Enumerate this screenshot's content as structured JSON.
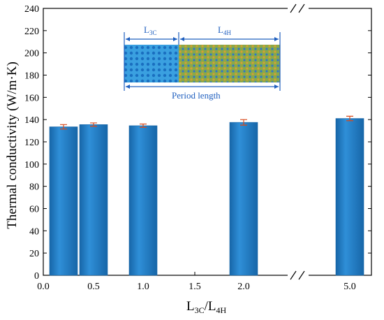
{
  "chart_data": {
    "type": "bar",
    "title": "",
    "xlabel": {
      "main": "L",
      "sub1": "3C",
      "sep": "/L",
      "sub2": "4H"
    },
    "ylabel": "Thermal conductivity (W/m·K)",
    "ylim": [
      0,
      240
    ],
    "yticks": [
      "0",
      "20",
      "40",
      "60",
      "80",
      "100",
      "120",
      "140",
      "160",
      "180",
      "200",
      "220",
      "240"
    ],
    "xticks": [
      "0.0",
      "0.5",
      "1.0",
      "1.5",
      "2.0",
      "5.0"
    ],
    "categories": [
      "0.25",
      "0.5",
      "1.0",
      "2.0",
      "5.0"
    ],
    "values": [
      133.5,
      135.5,
      134.5,
      137.5,
      141
    ],
    "errors": [
      2.0,
      1.5,
      1.5,
      2.5,
      2.0
    ],
    "bar_color": "#2f8fd8",
    "bar_color_dark": "#1766a8",
    "error_color": "#d84a1b",
    "axis_break": true,
    "inset": {
      "label_left": {
        "main": "L",
        "sub": "3C"
      },
      "label_right": {
        "main": "L",
        "sub": "4H"
      },
      "label_bottom": "Period length",
      "color_left": "#3aa0e0",
      "color_right": "#8aa84a"
    }
  }
}
